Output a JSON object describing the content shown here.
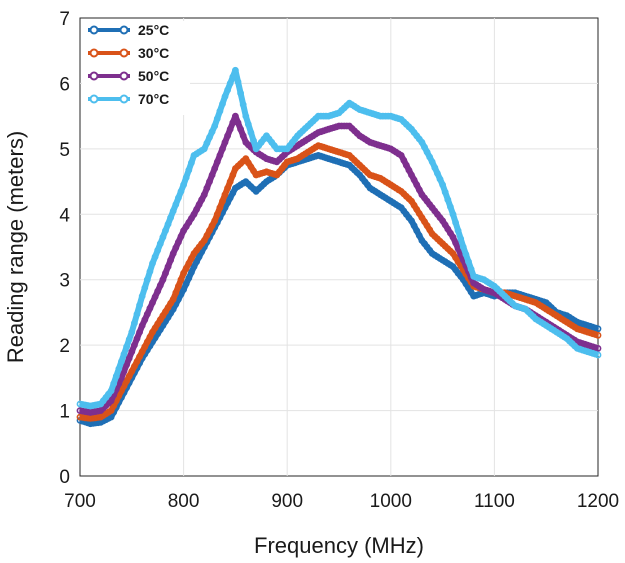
{
  "chart_data": {
    "type": "line",
    "xlabel": "Frequency (MHz)",
    "ylabel": "Reading range (meters)",
    "xlim": [
      700,
      1200
    ],
    "ylim": [
      0,
      7
    ],
    "xticks": [
      700,
      800,
      900,
      1000,
      1100,
      1200
    ],
    "yticks": [
      0,
      1,
      2,
      3,
      4,
      5,
      6,
      7
    ],
    "grid": true,
    "legend_position": "top-left",
    "series": [
      {
        "name": "25°C",
        "color": "#1f6fb5",
        "x": [
          700,
          710,
          720,
          730,
          740,
          750,
          760,
          770,
          780,
          790,
          800,
          810,
          820,
          830,
          840,
          850,
          860,
          870,
          880,
          890,
          900,
          910,
          920,
          930,
          940,
          950,
          960,
          970,
          980,
          990,
          1000,
          1010,
          1020,
          1030,
          1040,
          1050,
          1060,
          1070,
          1080,
          1090,
          1100,
          1110,
          1120,
          1130,
          1140,
          1150,
          1160,
          1170,
          1180,
          1190,
          1200
        ],
        "values": [
          0.85,
          0.8,
          0.82,
          0.9,
          1.2,
          1.5,
          1.8,
          2.05,
          2.3,
          2.55,
          2.85,
          3.2,
          3.5,
          3.8,
          4.1,
          4.4,
          4.5,
          4.35,
          4.5,
          4.6,
          4.75,
          4.8,
          4.85,
          4.9,
          4.85,
          4.8,
          4.75,
          4.6,
          4.4,
          4.3,
          4.2,
          4.1,
          3.9,
          3.6,
          3.4,
          3.3,
          3.2,
          3.0,
          2.75,
          2.8,
          2.75,
          2.8,
          2.8,
          2.75,
          2.7,
          2.65,
          2.5,
          2.45,
          2.35,
          2.3,
          2.25
        ]
      },
      {
        "name": "30°C",
        "color": "#d95319",
        "x": [
          700,
          710,
          720,
          730,
          740,
          750,
          760,
          770,
          780,
          790,
          800,
          810,
          820,
          830,
          840,
          850,
          860,
          870,
          880,
          890,
          900,
          910,
          920,
          930,
          940,
          950,
          960,
          970,
          980,
          990,
          1000,
          1010,
          1020,
          1030,
          1040,
          1050,
          1060,
          1070,
          1080,
          1090,
          1100,
          1110,
          1120,
          1130,
          1140,
          1150,
          1160,
          1170,
          1180,
          1190,
          1200
        ],
        "values": [
          0.9,
          0.88,
          0.9,
          1.0,
          1.3,
          1.6,
          1.9,
          2.2,
          2.45,
          2.7,
          3.1,
          3.4,
          3.6,
          3.9,
          4.3,
          4.7,
          4.85,
          4.6,
          4.65,
          4.6,
          4.8,
          4.85,
          4.95,
          5.05,
          5.0,
          4.95,
          4.9,
          4.75,
          4.6,
          4.55,
          4.45,
          4.35,
          4.2,
          3.95,
          3.7,
          3.55,
          3.4,
          3.15,
          2.9,
          2.85,
          2.8,
          2.8,
          2.75,
          2.7,
          2.65,
          2.55,
          2.45,
          2.35,
          2.25,
          2.2,
          2.15
        ]
      },
      {
        "name": "50°C",
        "color": "#7e2f8e",
        "x": [
          700,
          710,
          720,
          730,
          740,
          750,
          760,
          770,
          780,
          790,
          800,
          810,
          820,
          830,
          840,
          850,
          860,
          870,
          880,
          890,
          900,
          910,
          920,
          930,
          940,
          950,
          960,
          970,
          980,
          990,
          1000,
          1010,
          1020,
          1030,
          1040,
          1050,
          1060,
          1070,
          1080,
          1090,
          1100,
          1110,
          1120,
          1130,
          1140,
          1150,
          1160,
          1170,
          1180,
          1190,
          1200
        ],
        "values": [
          1.0,
          0.97,
          1.0,
          1.15,
          1.5,
          1.9,
          2.3,
          2.65,
          3.0,
          3.4,
          3.75,
          4.0,
          4.3,
          4.7,
          5.1,
          5.5,
          5.1,
          4.95,
          4.85,
          4.8,
          4.95,
          5.05,
          5.15,
          5.25,
          5.3,
          5.35,
          5.35,
          5.2,
          5.1,
          5.05,
          5.0,
          4.9,
          4.6,
          4.3,
          4.1,
          3.9,
          3.65,
          3.3,
          2.95,
          2.85,
          2.8,
          2.7,
          2.6,
          2.55,
          2.45,
          2.35,
          2.25,
          2.15,
          2.05,
          2.0,
          1.95
        ]
      },
      {
        "name": "70°C",
        "color": "#4dbeee",
        "x": [
          700,
          710,
          720,
          730,
          740,
          750,
          760,
          770,
          780,
          790,
          800,
          810,
          820,
          830,
          840,
          850,
          860,
          870,
          880,
          890,
          900,
          910,
          920,
          930,
          940,
          950,
          960,
          970,
          980,
          990,
          1000,
          1010,
          1020,
          1030,
          1040,
          1050,
          1060,
          1070,
          1080,
          1090,
          1100,
          1110,
          1120,
          1130,
          1140,
          1150,
          1160,
          1170,
          1180,
          1190,
          1200
        ],
        "values": [
          1.1,
          1.07,
          1.1,
          1.3,
          1.75,
          2.2,
          2.75,
          3.25,
          3.65,
          4.05,
          4.45,
          4.9,
          5.0,
          5.35,
          5.8,
          6.2,
          5.5,
          5.0,
          5.2,
          5.0,
          5.0,
          5.2,
          5.35,
          5.5,
          5.5,
          5.55,
          5.7,
          5.6,
          5.55,
          5.5,
          5.5,
          5.45,
          5.3,
          5.1,
          4.8,
          4.45,
          4.0,
          3.5,
          3.05,
          3.0,
          2.9,
          2.75,
          2.6,
          2.55,
          2.4,
          2.3,
          2.2,
          2.1,
          1.95,
          1.9,
          1.85
        ]
      }
    ]
  }
}
